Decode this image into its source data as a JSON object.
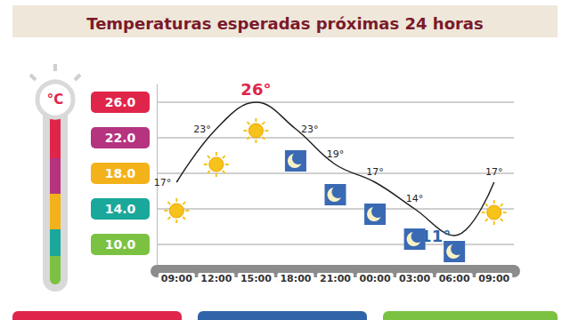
{
  "chart_data": {
    "type": "line",
    "title": "Temperaturas esperadas próximas 24 horas",
    "ylabel": "°C",
    "categories": [
      "09:00",
      "12:00",
      "15:00",
      "18:00",
      "21:00",
      "00:00",
      "03:00",
      "06:00",
      "09:00"
    ],
    "values": [
      17,
      23,
      26,
      23,
      19,
      17,
      14,
      11,
      17
    ],
    "value_labels": [
      "17°",
      "23°",
      "26°",
      "23°",
      "19°",
      "17°",
      "14°",
      "11°",
      "17°"
    ],
    "data_labels": true,
    "color": "#222222",
    "ylim": [
      7,
      28
    ],
    "yticks": [
      {
        "value": 10,
        "label": "10.0"
      },
      {
        "value": 14,
        "label": "14.0"
      },
      {
        "value": 18,
        "label": "18.0"
      },
      {
        "value": 22,
        "label": "22.0"
      },
      {
        "value": 26,
        "label": "26.0"
      }
    ],
    "grid": true
  }
}
